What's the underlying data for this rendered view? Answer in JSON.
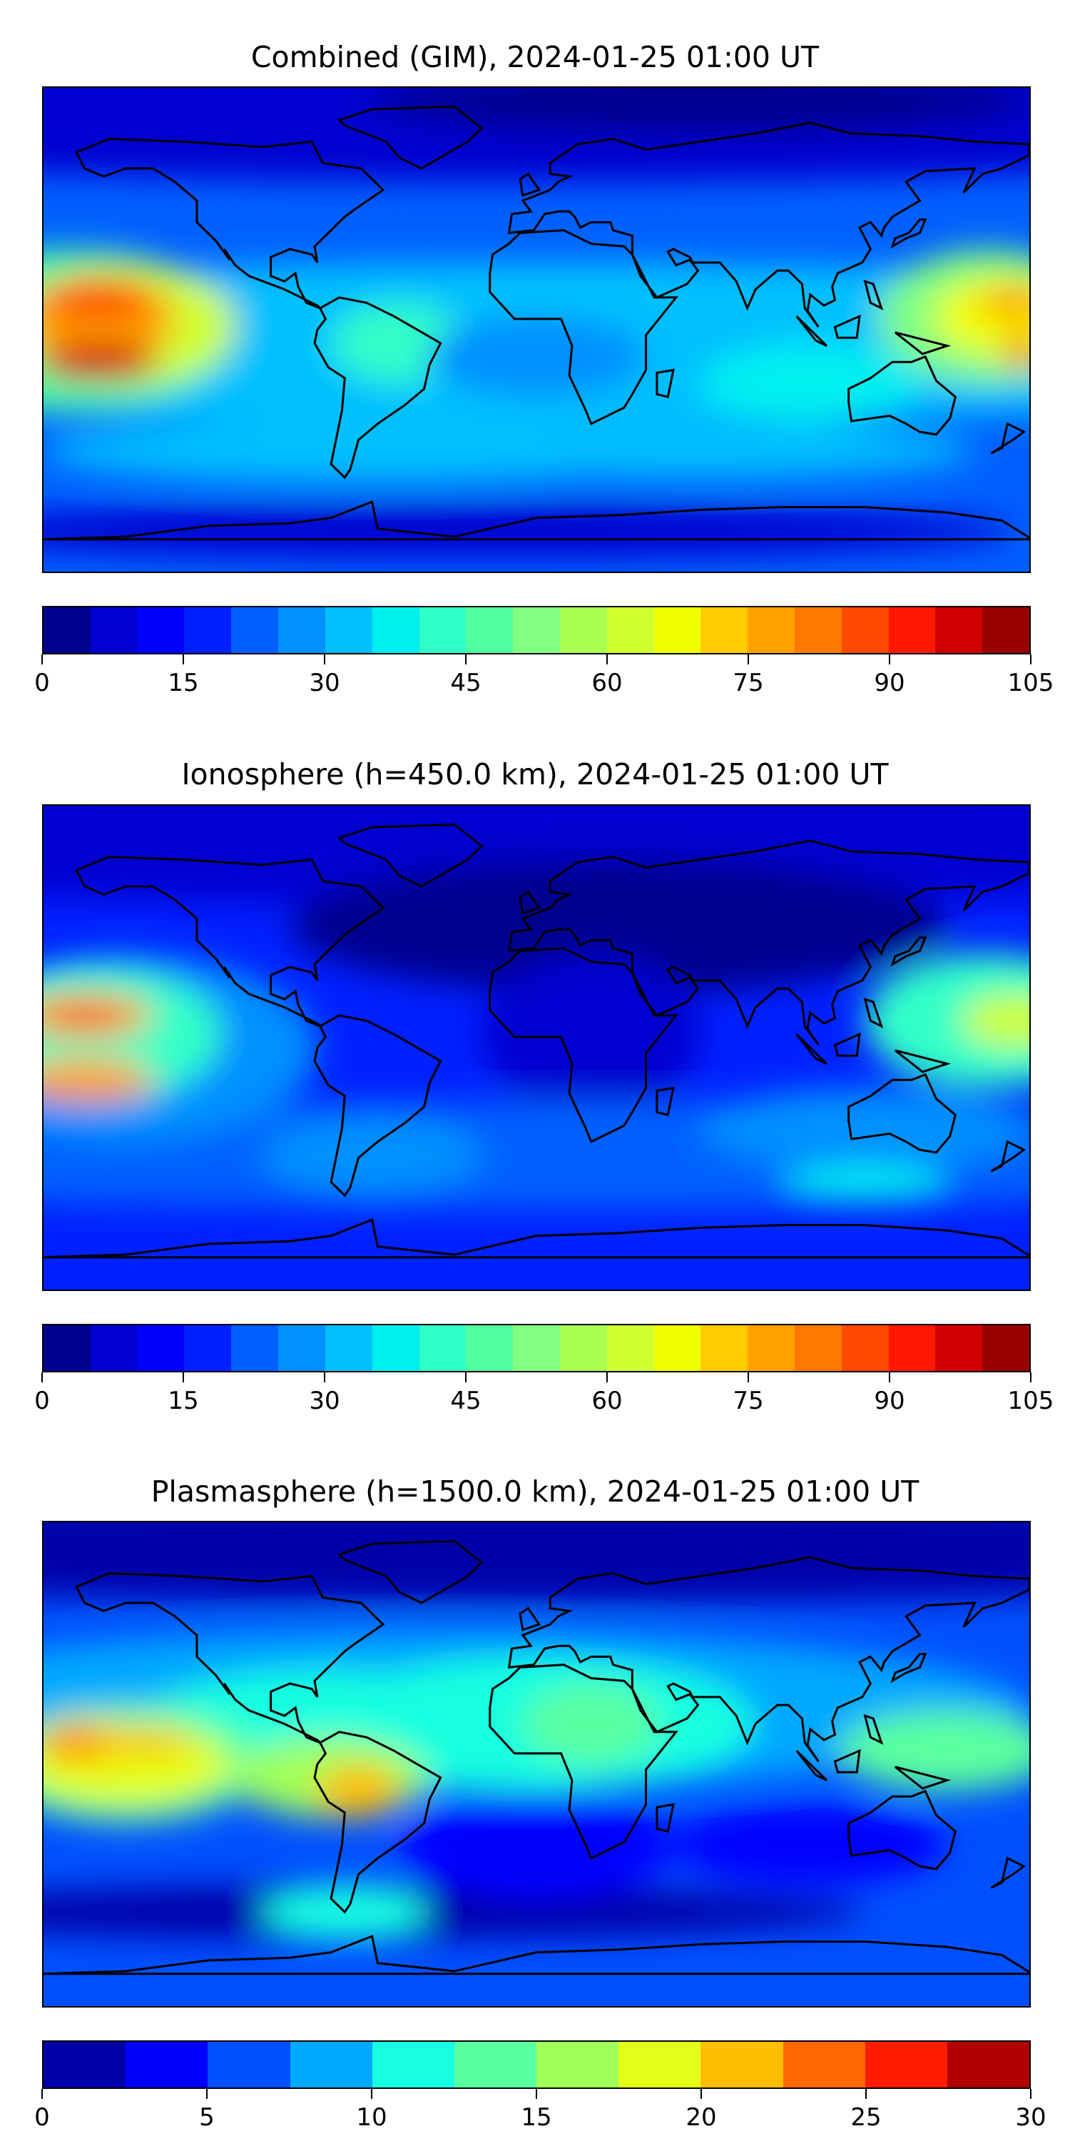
{
  "chart_data": [
    {
      "type": "heatmap",
      "title": "Combined (GIM), 2024-01-25 01:00 UT",
      "colorbar": {
        "range": [
          0,
          105
        ],
        "step": 5,
        "ticks": [
          "0",
          "15",
          "30",
          "45",
          "60",
          "75",
          "90",
          "105"
        ],
        "colors": [
          "#00008f",
          "#0000d0",
          "#0000ff",
          "#0020ff",
          "#0060ff",
          "#0090ff",
          "#00c0ff",
          "#00f0f0",
          "#30ffc8",
          "#50ffa0",
          "#80ff80",
          "#a8ff50",
          "#d0ff30",
          "#f0ff00",
          "#ffcc00",
          "#ffa000",
          "#ff7800",
          "#ff4800",
          "#ff1800",
          "#d00000",
          "#980000"
        ]
      }
    },
    {
      "type": "heatmap",
      "title": "Ionosphere  (h=450.0 km), 2024-01-25 01:00 UT",
      "colorbar": {
        "range": [
          0,
          105
        ],
        "step": 5,
        "ticks": [
          "0",
          "15",
          "30",
          "45",
          "60",
          "75",
          "90",
          "105"
        ],
        "colors": [
          "#00008f",
          "#0000d0",
          "#0000ff",
          "#0020ff",
          "#0060ff",
          "#0090ff",
          "#00c0ff",
          "#00f0f0",
          "#30ffc8",
          "#50ffa0",
          "#80ff80",
          "#a8ff50",
          "#d0ff30",
          "#f0ff00",
          "#ffcc00",
          "#ffa000",
          "#ff7800",
          "#ff4800",
          "#ff1800",
          "#d00000",
          "#980000"
        ]
      }
    },
    {
      "type": "heatmap",
      "title": "Plasmasphere (h=1500.0 km), 2024-01-25 01:00 UT",
      "colorbar": {
        "range": [
          0,
          30
        ],
        "step": 2.5,
        "ticks": [
          "0",
          "5",
          "10",
          "15",
          "20",
          "25",
          "30"
        ],
        "colors": [
          "#0000a8",
          "#0000ff",
          "#0050ff",
          "#00a8ff",
          "#16ffe0",
          "#5aff9f",
          "#a0ff58",
          "#e4ff18",
          "#ffbf00",
          "#ff6800",
          "#ff1c00",
          "#b00000"
        ]
      }
    }
  ]
}
